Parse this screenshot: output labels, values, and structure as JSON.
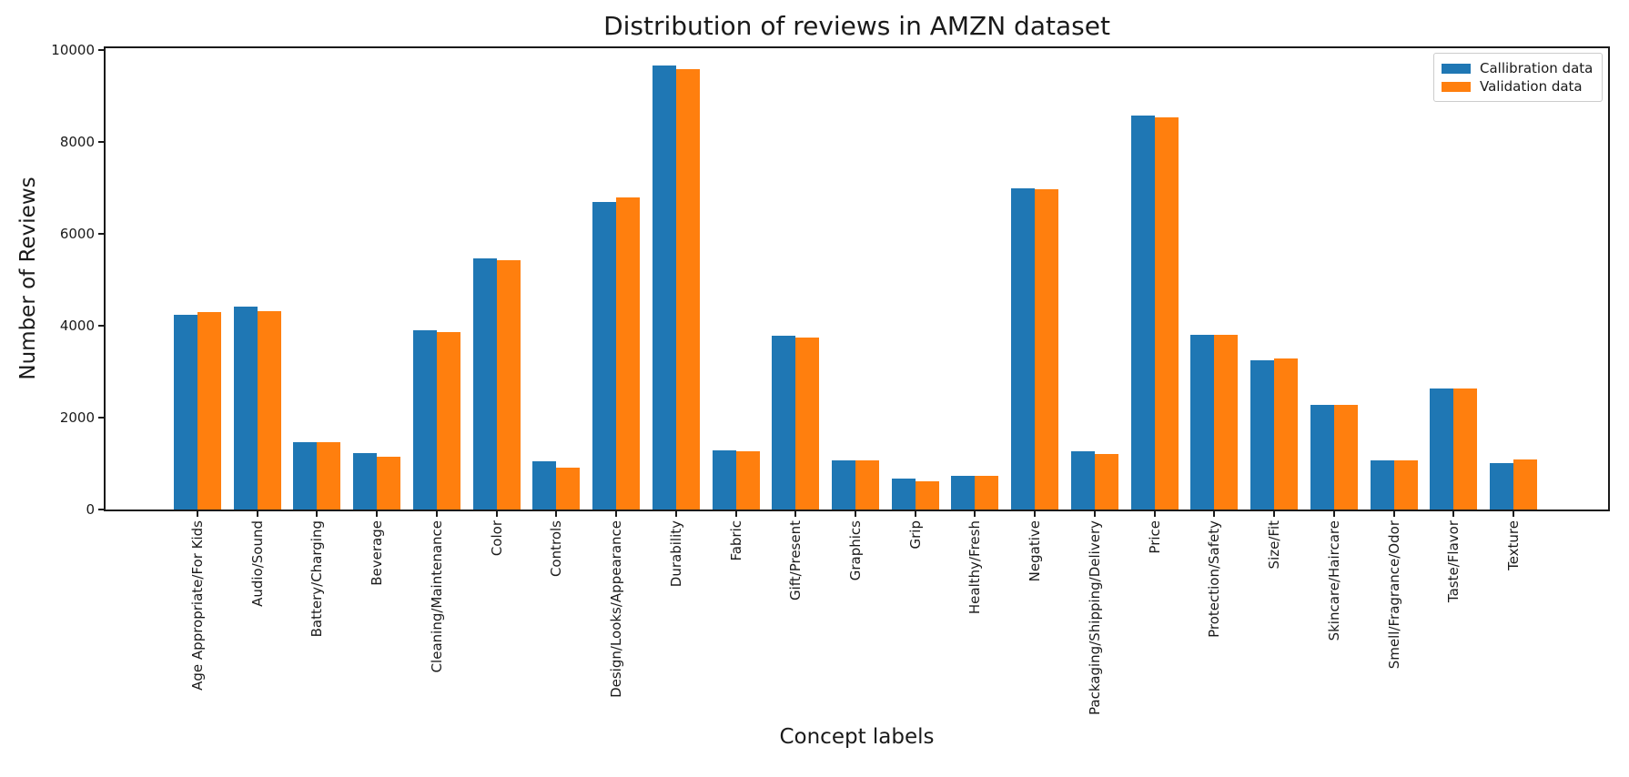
{
  "chart_data": {
    "type": "bar",
    "title": "Distribution of reviews in AMZN dataset",
    "xlabel": "Concept labels",
    "ylabel": "Number of Reviews",
    "ylim": [
      0,
      10000
    ],
    "yticks": [
      0,
      2000,
      4000,
      6000,
      8000,
      10000
    ],
    "grid": false,
    "legend_position": "upper right",
    "x_tick_label_rotation": 90,
    "categories": [
      "Age Appropriate/For Kids",
      "Audio/Sound",
      "Battery/Charging",
      "Beverage",
      "Cleaning/Maintenance",
      "Color",
      "Controls",
      "Design/Looks/Appearance",
      "Durability",
      "Fabric",
      "Gift/Present",
      "Graphics",
      "Grip",
      "Healthy/Fresh",
      "Negative",
      "Packaging/Shipping/Delivery",
      "Price",
      "Protection/Safety",
      "Size/Fit",
      "Skincare/Haircare",
      "Smell/Fragrance/Odor",
      "Taste/Flavor",
      "Texture"
    ],
    "series": [
      {
        "name": "Callibration data",
        "color": "#1f77b4",
        "values": [
          4240,
          4410,
          1470,
          1230,
          3910,
          5470,
          1050,
          6690,
          9670,
          1290,
          3790,
          1060,
          670,
          730,
          6990,
          1260,
          8580,
          3810,
          3240,
          2280,
          1060,
          2630,
          1000
        ]
      },
      {
        "name": "Validation data",
        "color": "#ff7f0e",
        "values": [
          4290,
          4310,
          1470,
          1150,
          3870,
          5430,
          910,
          6790,
          9590,
          1260,
          3740,
          1060,
          610,
          730,
          6970,
          1200,
          8540,
          3810,
          3290,
          2280,
          1060,
          2630,
          1080
        ]
      }
    ]
  }
}
